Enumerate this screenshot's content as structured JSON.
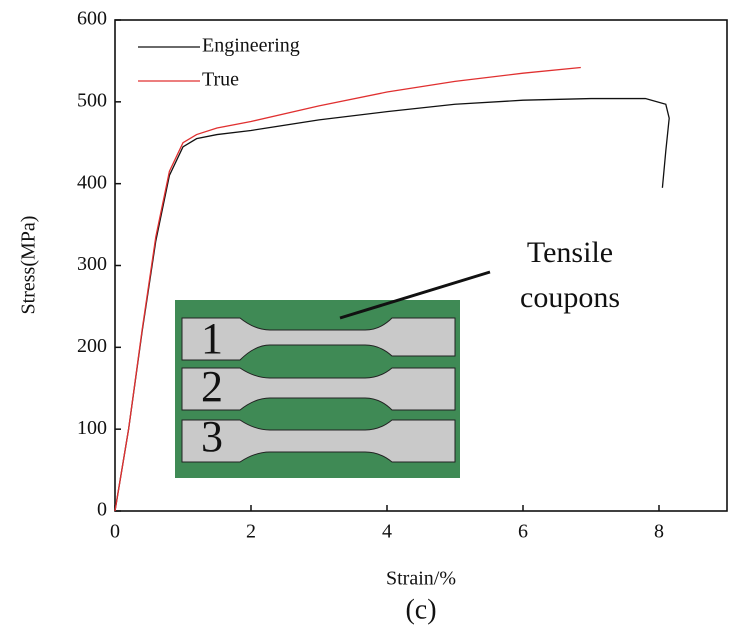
{
  "chart_data": {
    "type": "line",
    "x_label": "Strain/%",
    "y_label": "Stress(MPa)",
    "caption": "(c)",
    "annotation": [
      "Tensile",
      "coupons"
    ],
    "inset_labels": [
      "1",
      "2",
      "3"
    ],
    "xlim": [
      0,
      9
    ],
    "xticks": [
      0,
      2,
      4,
      6,
      8
    ],
    "ylim": [
      0,
      600
    ],
    "yticks": [
      0,
      100,
      200,
      300,
      400,
      500,
      600
    ],
    "legend": "upper left",
    "series": [
      {
        "name": "Engineering",
        "color": "#111111",
        "x": [
          0,
          0.2,
          0.4,
          0.6,
          0.8,
          1.0,
          1.2,
          1.5,
          2,
          3,
          4,
          5,
          6,
          7,
          7.8,
          8.1,
          8.15,
          8.1,
          8.05
        ],
        "values": [
          0,
          100,
          220,
          330,
          410,
          445,
          455,
          460,
          465,
          478,
          488,
          497,
          502,
          504,
          504,
          497,
          480,
          440,
          395
        ]
      },
      {
        "name": "True",
        "color": "#e03030",
        "x": [
          0,
          0.2,
          0.4,
          0.6,
          0.8,
          1.0,
          1.2,
          1.5,
          2,
          3,
          4,
          5,
          6,
          6.85
        ],
        "values": [
          0,
          100,
          222,
          335,
          415,
          450,
          460,
          468,
          476,
          495,
          512,
          525,
          535,
          542
        ]
      }
    ]
  }
}
